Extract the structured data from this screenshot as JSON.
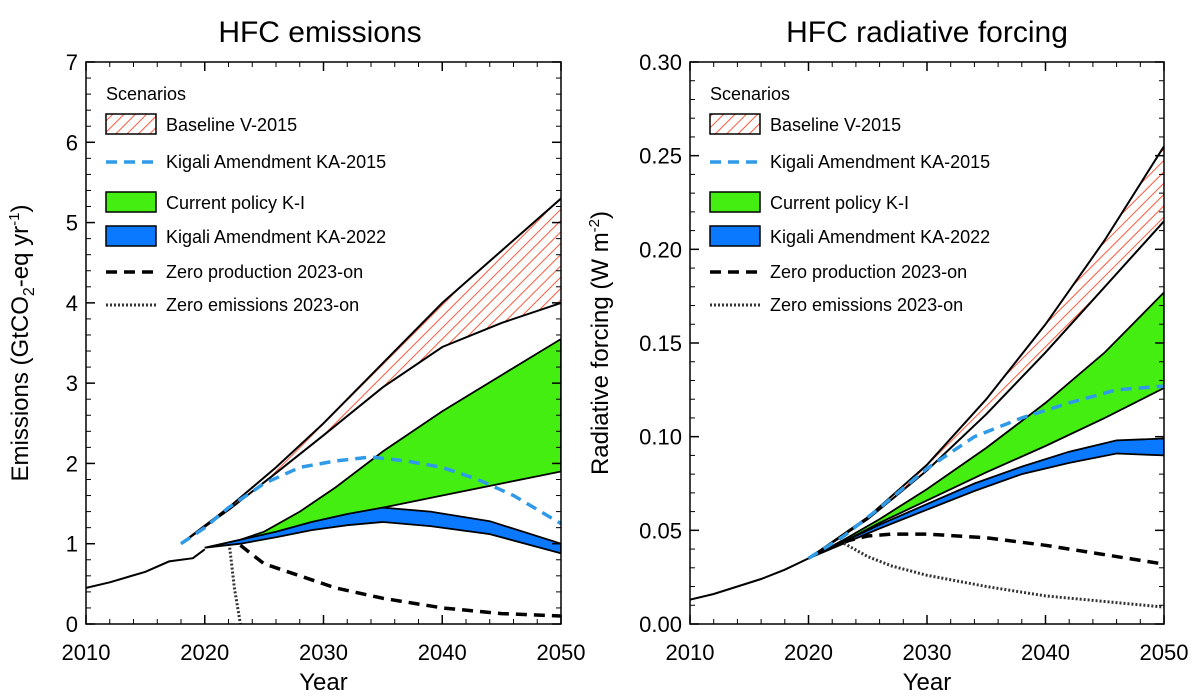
{
  "chart_data": [
    {
      "type": "line",
      "title": "HFC emissions",
      "xlabel": "Year",
      "ylabel": {
        "main": "Emissions (GtCO",
        "sub": "2",
        "mid": "-eq yr",
        "sup": "-1",
        "end": ")"
      },
      "xlim": [
        2010,
        2050
      ],
      "ylim": [
        0,
        7
      ],
      "xticks": [
        "2010",
        "2020",
        "2030",
        "2040",
        "2050"
      ],
      "yticks": [
        0,
        1,
        2,
        3,
        4,
        5,
        6,
        7
      ],
      "ytick_labels": [
        "0",
        "1",
        "2",
        "3",
        "4",
        "5",
        "6",
        "7"
      ],
      "grid": false,
      "legend": {
        "title": "Scenarios",
        "position": "top-left",
        "entries": [
          "Baseline V-2015",
          "Kigali Amendment KA-2015",
          "Current policy K-I",
          "Kigali Amendment KA-2022",
          "Zero production 2023-on",
          "Zero emissions 2023-on"
        ]
      },
      "series": {
        "history": {
          "x": [
            2010,
            2012,
            2015,
            2017,
            2019,
            2020
          ],
          "y": [
            0.45,
            0.52,
            0.65,
            0.78,
            0.82,
            0.93
          ]
        },
        "baseline_upper": {
          "x": [
            2018,
            2022,
            2026,
            2030,
            2035,
            2040,
            2045,
            2050
          ],
          "y": [
            1.0,
            1.45,
            1.95,
            2.5,
            3.25,
            4.0,
            4.65,
            5.3
          ]
        },
        "baseline_lower": {
          "x": [
            2018,
            2022,
            2026,
            2030,
            2035,
            2040,
            2045,
            2050
          ],
          "y": [
            1.0,
            1.42,
            1.88,
            2.35,
            2.95,
            3.45,
            3.75,
            4.0
          ]
        },
        "ka2015": {
          "x": [
            2018,
            2020,
            2022,
            2025,
            2028,
            2031,
            2034,
            2037,
            2040,
            2043,
            2046,
            2050
          ],
          "y": [
            1.0,
            1.2,
            1.45,
            1.75,
            1.95,
            2.03,
            2.08,
            2.03,
            1.95,
            1.8,
            1.6,
            1.25
          ]
        },
        "kI_upper": {
          "x": [
            2020,
            2023,
            2025,
            2028,
            2031,
            2035,
            2040,
            2045,
            2050
          ],
          "y": [
            0.95,
            1.05,
            1.15,
            1.4,
            1.7,
            2.15,
            2.65,
            3.1,
            3.55
          ]
        },
        "kI_lower": {
          "x": [
            2020,
            2023,
            2025,
            2028,
            2031,
            2035,
            2040,
            2045,
            2050
          ],
          "y": [
            0.95,
            1.03,
            1.1,
            1.22,
            1.33,
            1.45,
            1.6,
            1.75,
            1.9
          ]
        },
        "ka2022_upper": {
          "x": [
            2020,
            2023,
            2026,
            2029,
            2032,
            2035,
            2039,
            2044,
            2050
          ],
          "y": [
            0.95,
            1.05,
            1.15,
            1.27,
            1.37,
            1.45,
            1.4,
            1.28,
            1.0
          ]
        },
        "ka2022_lower": {
          "x": [
            2020,
            2023,
            2026,
            2029,
            2032,
            2035,
            2039,
            2044,
            2050
          ],
          "y": [
            0.95,
            1.0,
            1.08,
            1.17,
            1.23,
            1.27,
            1.22,
            1.12,
            0.88
          ]
        },
        "zero_production": {
          "x": [
            2023,
            2025,
            2028,
            2031,
            2035,
            2040,
            2045,
            2050
          ],
          "y": [
            0.98,
            0.75,
            0.6,
            0.45,
            0.32,
            0.2,
            0.13,
            0.1
          ]
        },
        "zero_emissions": {
          "x": [
            2022.1,
            2022.5,
            2023
          ],
          "y": [
            0.95,
            0.45,
            0.0
          ]
        }
      }
    },
    {
      "type": "line",
      "title": "HFC radiative forcing",
      "xlabel": "Year",
      "ylabel": {
        "main": "Radiative forcing (W m",
        "sup": "-2",
        "end": ")"
      },
      "xlim": [
        2010,
        2050
      ],
      "ylim": [
        0,
        0.3
      ],
      "xticks": [
        "2010",
        "2020",
        "2030",
        "2040",
        "2050"
      ],
      "yticks": [
        0,
        0.05,
        0.1,
        0.15,
        0.2,
        0.25,
        0.3
      ],
      "ytick_labels": [
        "0.00",
        "0.05",
        "0.10",
        "0.15",
        "0.20",
        "0.25",
        "0.30"
      ],
      "grid": false,
      "legend": {
        "title": "Scenarios",
        "position": "top-left",
        "entries": [
          "Baseline V-2015",
          "Kigali Amendment KA-2015",
          "Current policy K-I",
          "Kigali Amendment KA-2022",
          "Zero production 2023-on",
          "Zero emissions 2023-on"
        ]
      },
      "series": {
        "history": {
          "x": [
            2010,
            2012,
            2014,
            2016,
            2018,
            2020
          ],
          "y": [
            0.013,
            0.016,
            0.02,
            0.024,
            0.029,
            0.035
          ]
        },
        "baseline_upper": {
          "x": [
            2020,
            2025,
            2030,
            2035,
            2040,
            2045,
            2050
          ],
          "y": [
            0.035,
            0.057,
            0.085,
            0.12,
            0.16,
            0.205,
            0.255
          ]
        },
        "baseline_lower": {
          "x": [
            2020,
            2025,
            2030,
            2035,
            2040,
            2045,
            2050
          ],
          "y": [
            0.035,
            0.056,
            0.082,
            0.112,
            0.145,
            0.18,
            0.215
          ]
        },
        "ka2015": {
          "x": [
            2020,
            2023,
            2026,
            2030,
            2034,
            2038,
            2042,
            2046,
            2050
          ],
          "y": [
            0.035,
            0.047,
            0.062,
            0.083,
            0.1,
            0.11,
            0.118,
            0.125,
            0.127
          ]
        },
        "kI_upper": {
          "x": [
            2020,
            2023,
            2026,
            2030,
            2035,
            2040,
            2045,
            2050
          ],
          "y": [
            0.035,
            0.045,
            0.056,
            0.072,
            0.094,
            0.118,
            0.145,
            0.177
          ]
        },
        "kI_lower": {
          "x": [
            2020,
            2023,
            2026,
            2030,
            2035,
            2040,
            2045,
            2050
          ],
          "y": [
            0.035,
            0.044,
            0.054,
            0.066,
            0.081,
            0.095,
            0.11,
            0.126
          ]
        },
        "ka2022_upper": {
          "x": [
            2020,
            2023,
            2026,
            2030,
            2034,
            2038,
            2042,
            2046,
            2050
          ],
          "y": [
            0.035,
            0.044,
            0.053,
            0.064,
            0.075,
            0.084,
            0.092,
            0.098,
            0.099
          ]
        },
        "ka2022_lower": {
          "x": [
            2020,
            2023,
            2026,
            2030,
            2034,
            2038,
            2042,
            2046,
            2050
          ],
          "y": [
            0.035,
            0.043,
            0.051,
            0.061,
            0.071,
            0.08,
            0.086,
            0.091,
            0.09
          ]
        },
        "zero_production": {
          "x": [
            2023,
            2025,
            2027,
            2030,
            2035,
            2040,
            2045,
            2050
          ],
          "y": [
            0.044,
            0.047,
            0.048,
            0.048,
            0.046,
            0.042,
            0.037,
            0.032
          ]
        },
        "zero_emissions": {
          "x": [
            2023,
            2025,
            2027,
            2030,
            2035,
            2040,
            2045,
            2050
          ],
          "y": [
            0.043,
            0.036,
            0.031,
            0.026,
            0.02,
            0.015,
            0.012,
            0.009
          ]
        }
      }
    }
  ],
  "colors": {
    "baseline_hatch": "#ff5a3c",
    "ka2015": "#2f9be8",
    "current_policy": "#44ee11",
    "ka2022": "#0a78ff",
    "line": "#000000"
  }
}
